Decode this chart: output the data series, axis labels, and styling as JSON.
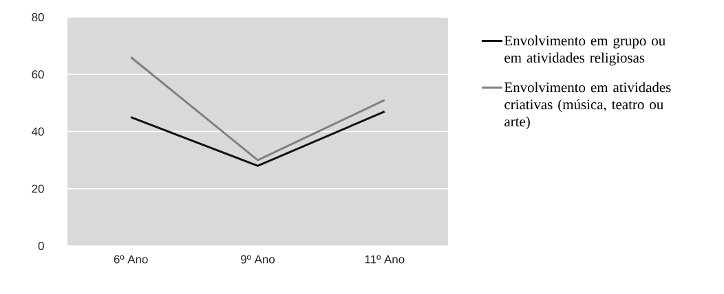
{
  "chart_data": {
    "type": "line",
    "categories": [
      "6º Ano",
      "9º Ano",
      "11º Ano"
    ],
    "series": [
      {
        "name": "Envolvimento em grupo ou em atividades religiosas",
        "color": "#111111",
        "values": [
          45,
          28,
          47
        ]
      },
      {
        "name": "Envolvimento em atividades criativas (música, teatro ou arte)",
        "color": "#808080",
        "values": [
          66,
          30,
          51
        ]
      }
    ],
    "ylim": [
      0,
      80
    ],
    "yticks": [
      0,
      20,
      40,
      60,
      80
    ],
    "grid": "y",
    "legend": "right",
    "marker": "none",
    "line_style": "solid"
  }
}
